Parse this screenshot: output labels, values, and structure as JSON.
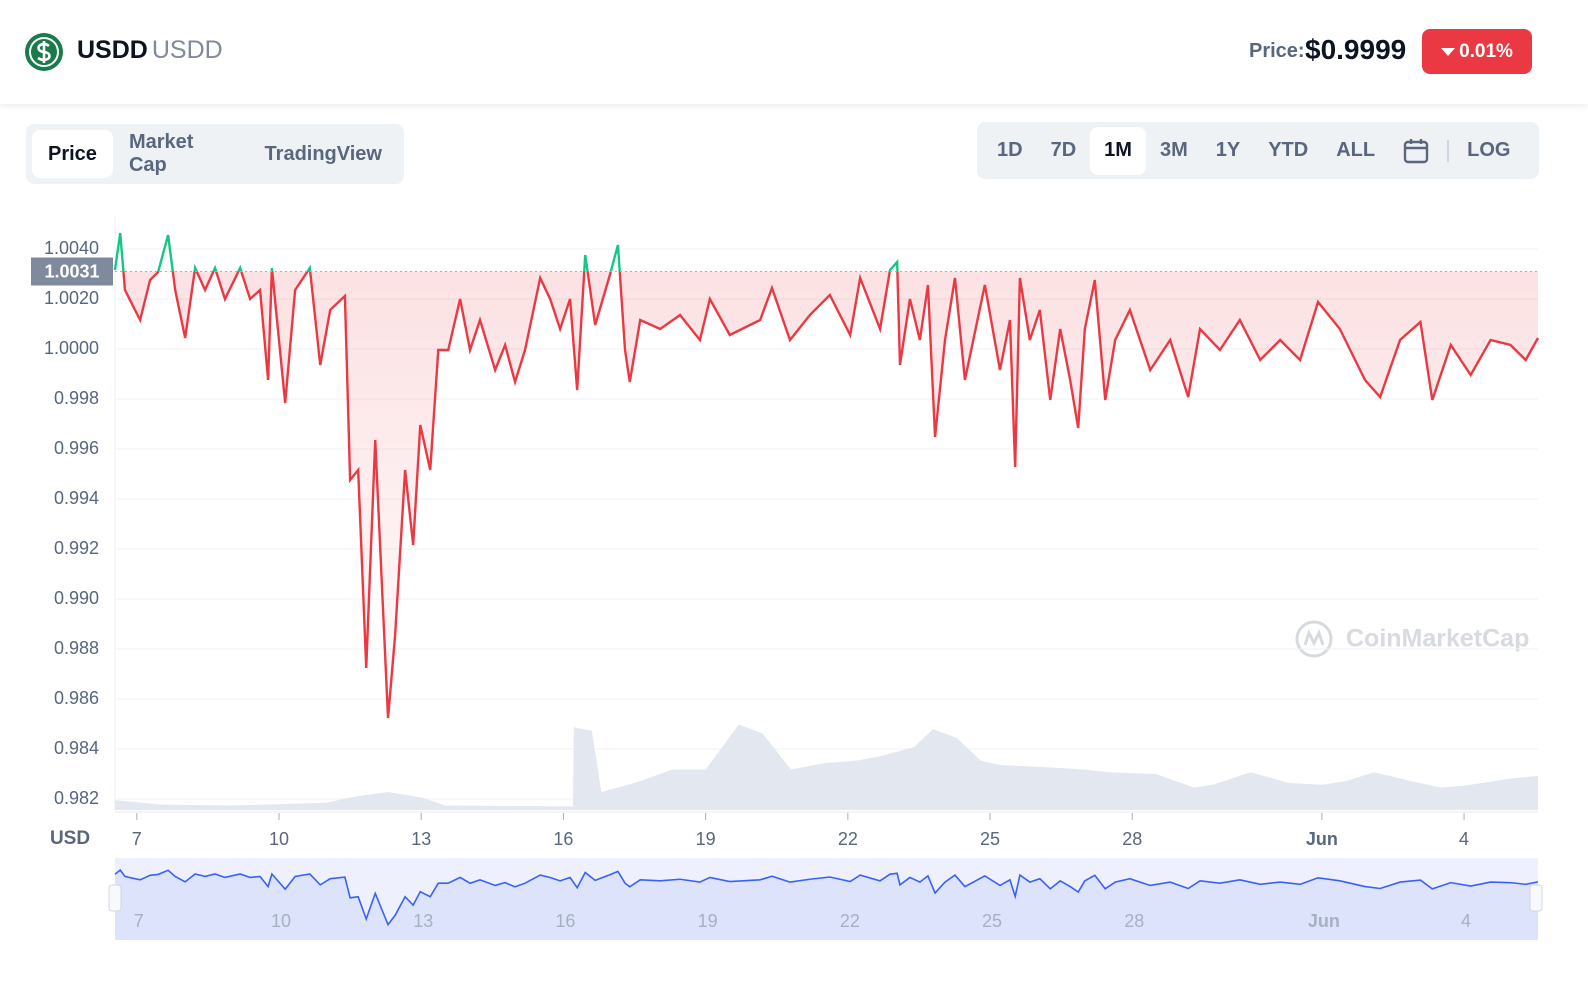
{
  "header": {
    "name": "USDD",
    "symbol": "USDD",
    "price_label": "Price:",
    "price": "$0.9999",
    "change": "0.01%"
  },
  "tabs": [
    "Price",
    "Market Cap",
    "TradingView"
  ],
  "ranges": [
    "1D",
    "7D",
    "1M",
    "3M",
    "1Y",
    "YTD",
    "ALL"
  ],
  "log_button": "LOG",
  "chart_data": {
    "type": "line",
    "y_label": "USD",
    "watermark": "CoinMarketCap",
    "xlim": [
      6.54,
      36.56
    ],
    "xticks": [
      7,
      10,
      13,
      16,
      19,
      22,
      25,
      28,
      {
        "value": 32,
        "label": "Jun"
      },
      {
        "value": 35,
        "label": "4"
      }
    ],
    "ylim": [
      0.98156,
      1.00536
    ],
    "yticks": [
      {
        "value": 1.004,
        "label": "1.0040"
      },
      {
        "value": 1.002,
        "label": "1.0020"
      },
      {
        "value": 1.0,
        "label": "1.0000"
      },
      0.998,
      0.996,
      0.994,
      0.992,
      {
        "value": 0.99,
        "label": "0.990"
      },
      0.988,
      0.986,
      0.984,
      0.982
    ],
    "grid": true,
    "reference": {
      "value": 1.0031,
      "label": "1.0031"
    },
    "series": [
      {
        "color": "#ea3943",
        "color_above": "#16c784",
        "x": [
          6.54,
          6.65,
          6.75,
          7.07,
          7.28,
          7.45,
          7.66,
          7.81,
          8.02,
          8.23,
          8.44,
          8.65,
          8.86,
          9.18,
          9.39,
          9.6,
          9.77,
          9.85,
          10.13,
          10.34,
          10.65,
          10.87,
          11.08,
          11.39,
          11.5,
          11.67,
          11.84,
          12.03,
          12.3,
          12.45,
          12.66,
          12.83,
          12.98,
          13.19,
          13.36,
          13.57,
          13.82,
          14.03,
          14.24,
          14.56,
          14.77,
          14.98,
          15.19,
          15.51,
          15.72,
          15.93,
          16.14,
          16.29,
          16.46,
          16.67,
          16.98,
          17.15,
          17.3,
          17.4,
          17.62,
          18.04,
          18.46,
          18.88,
          19.09,
          19.51,
          20.15,
          20.4,
          20.78,
          21.2,
          21.62,
          22.05,
          22.26,
          22.68,
          22.89,
          23.04,
          23.1,
          23.31,
          23.52,
          23.69,
          23.84,
          24.05,
          24.26,
          24.47,
          24.89,
          25.21,
          25.42,
          25.53,
          25.63,
          25.84,
          26.05,
          26.27,
          26.48,
          26.69,
          26.86,
          27.0,
          27.21,
          27.43,
          27.64,
          27.95,
          28.38,
          28.8,
          29.18,
          29.43,
          29.85,
          30.27,
          30.7,
          31.12,
          31.54,
          31.92,
          32.38,
          32.91,
          33.23,
          33.65,
          34.08,
          34.33,
          34.72,
          35.14,
          35.56,
          35.98,
          36.3,
          36.56
        ],
        "values": [
          1.00316,
          1.00464,
          1.00236,
          1.00116,
          1.00276,
          1.00308,
          1.00456,
          1.00236,
          1.00044,
          1.00324,
          1.00236,
          1.00324,
          1.002,
          1.00324,
          1.002,
          1.00236,
          0.99876,
          1.00324,
          0.99784,
          1.00236,
          1.00324,
          0.99936,
          1.00156,
          1.00212,
          0.99476,
          0.99516,
          0.98724,
          0.99636,
          0.98524,
          0.98856,
          0.99516,
          0.99216,
          0.99696,
          0.99516,
          0.99996,
          0.99996,
          1.002,
          0.99996,
          1.00116,
          0.99916,
          1.00016,
          0.99868,
          0.99996,
          1.00284,
          1.002,
          1.0008,
          1.002,
          0.99836,
          1.00376,
          1.00096,
          1.00296,
          1.00416,
          0.99996,
          0.99868,
          1.00116,
          1.0008,
          1.00136,
          1.00036,
          1.002,
          1.00056,
          1.00116,
          1.00244,
          1.00036,
          1.00136,
          1.00216,
          1.00056,
          1.00284,
          1.0008,
          1.00316,
          1.00348,
          0.99936,
          1.002,
          1.00036,
          1.00256,
          0.99648,
          1.00036,
          1.00284,
          0.99876,
          1.00256,
          0.99916,
          1.00116,
          0.99528,
          1.00284,
          1.00036,
          1.00156,
          0.99796,
          1.0008,
          0.99876,
          0.99684,
          1.0008,
          1.00276,
          0.99796,
          1.00036,
          1.00156,
          0.99916,
          1.00036,
          0.99808,
          1.0008,
          0.99996,
          1.00116,
          0.99956,
          1.00036,
          0.99956,
          1.00188,
          1.0008,
          0.99876,
          0.99808,
          1.00036,
          1.00108,
          0.99796,
          1.00016,
          0.99896,
          1.00036,
          1.00016,
          0.99956,
          1.00044
        ]
      }
    ],
    "volume": {
      "color": "#e3e7ef",
      "x": [
        6.54,
        7.5,
        9,
        11,
        11.5,
        12.3,
        13,
        13.5,
        16.2,
        16.22,
        16.6,
        16.8,
        17.5,
        18.3,
        19,
        19.7,
        20.2,
        20.8,
        21.5,
        22.2,
        22.7,
        23.4,
        23.8,
        24.3,
        24.8,
        25.2,
        26,
        27,
        27.5,
        28.5,
        29.3,
        29.7,
        30.5,
        31.3,
        32,
        32.5,
        33.1,
        33.9,
        34.5,
        35,
        36,
        36.56
      ],
      "values": [
        11,
        6,
        5,
        8,
        14,
        20,
        14,
        5,
        4,
        92,
        88,
        20,
        30,
        45,
        45,
        95,
        85,
        45,
        52,
        55,
        60,
        70,
        90,
        80,
        55,
        50,
        48,
        45,
        42,
        40,
        25,
        28,
        42,
        30,
        28,
        32,
        42,
        32,
        25,
        27,
        35,
        38
      ]
    },
    "navigator_color": "#3861fb"
  }
}
